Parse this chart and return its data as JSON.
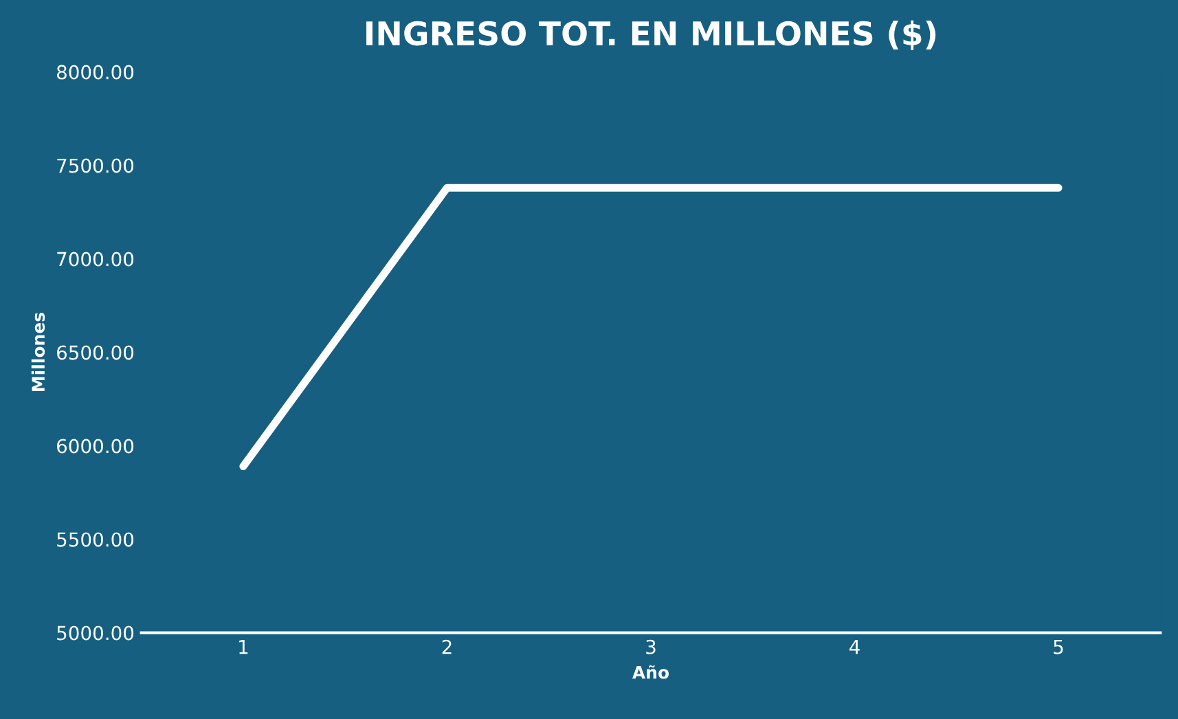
{
  "chart_data": {
    "type": "line",
    "title": "INGRESO TOT. EN MILLONES ($)",
    "xlabel": "Año",
    "ylabel": "Millones",
    "categories": [
      "1",
      "2",
      "3",
      "4",
      "5"
    ],
    "series": [
      {
        "color": "#ffffff",
        "values": [
          5890,
          7380,
          7380,
          7380,
          7380
        ]
      }
    ],
    "ylim": [
      5000,
      8000
    ],
    "yticks": [
      {
        "value": 5000,
        "label": "5000.00"
      },
      {
        "value": 5500,
        "label": "5500.00"
      },
      {
        "value": 6000,
        "label": "6000.00"
      },
      {
        "value": 6500,
        "label": "6500.00"
      },
      {
        "value": 7000,
        "label": "7000.00"
      },
      {
        "value": 7500,
        "label": "7500.00"
      },
      {
        "value": 8000,
        "label": "8000.00"
      }
    ],
    "grid": false,
    "legend": false,
    "marker": "none",
    "line_style": "solid"
  }
}
